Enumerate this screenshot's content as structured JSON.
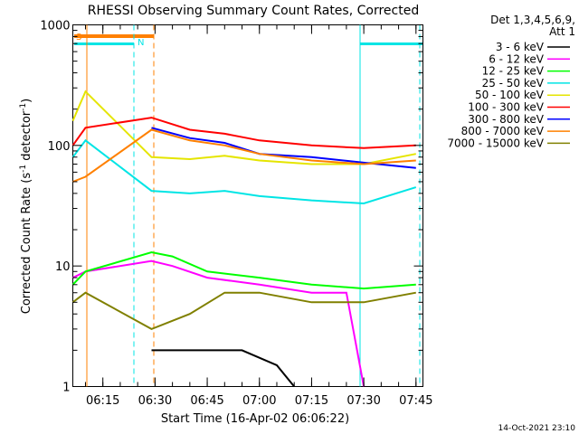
{
  "chart_data": {
    "type": "line",
    "title": "RHESSI Observing Summary Count Rates, Corrected",
    "xlabel": "Start Time (16-Apr-02 06:06:22)",
    "ylabel": "Corrected Count Rate (s",
    "ylabel_sup1": "-1",
    "ylabel_mid": " detector",
    "ylabel_sup2": "-1",
    "ylabel_end": ")",
    "y_scale": "log",
    "xlim": [
      "06:06:22",
      "07:47:00"
    ],
    "ylim": [
      1,
      1000
    ],
    "x_ticks": [
      "06:15",
      "06:30",
      "06:45",
      "07:00",
      "07:15",
      "07:30",
      "07:45"
    ],
    "y_ticks": [
      "1",
      "10",
      "100",
      "1000"
    ],
    "legend_placement": "right",
    "legend_header": [
      "Det 1,3,4,5,6,9,",
      "Att 1"
    ],
    "timestamp": "14-Oct-2021 23:10",
    "flags": [
      {
        "label": "S",
        "color": "#ff8000"
      },
      {
        "label": "N",
        "color": "#00e5e5"
      }
    ],
    "series": [
      {
        "name": "3 - 6 keV",
        "color": "#000000",
        "x": [
          "06:29",
          "06:35",
          "06:45",
          "06:55",
          "07:05",
          "07:10"
        ],
        "y": [
          2,
          2,
          2,
          2,
          1.5,
          1
        ]
      },
      {
        "name": "6 - 12 keV",
        "color": "#ff00ff",
        "x": [
          "06:06:22",
          "06:10",
          "06:29",
          "06:35",
          "06:45",
          "07:00",
          "07:15",
          "07:25",
          "07:30"
        ],
        "y": [
          8,
          9,
          11,
          10,
          8,
          7,
          6,
          6,
          1
        ]
      },
      {
        "name": "12 - 25 keV",
        "color": "#00ff00",
        "x": [
          "06:06:22",
          "06:10",
          "06:29",
          "06:35",
          "06:45",
          "07:00",
          "07:15",
          "07:30",
          "07:45"
        ],
        "y": [
          7,
          9,
          13,
          12,
          9,
          8,
          7,
          6.5,
          7
        ]
      },
      {
        "name": "25 - 50 keV",
        "color": "#00e5e5",
        "x": [
          "06:06:22",
          "06:10",
          "06:29",
          "06:40",
          "06:50",
          "07:00",
          "07:15",
          "07:30",
          "07:45"
        ],
        "y": [
          80,
          110,
          42,
          40,
          42,
          38,
          35,
          33,
          45
        ]
      },
      {
        "name": "50 - 100 keV",
        "color": "#e5e500",
        "x": [
          "06:06:22",
          "06:10",
          "06:29",
          "06:40",
          "06:50",
          "07:00",
          "07:15",
          "07:30",
          "07:45"
        ],
        "y": [
          160,
          280,
          80,
          77,
          82,
          75,
          70,
          70,
          85
        ]
      },
      {
        "name": "100 - 300 keV",
        "color": "#ff0000",
        "x": [
          "06:06:22",
          "06:10",
          "06:29",
          "06:40",
          "06:50",
          "07:00",
          "07:15",
          "07:30",
          "07:45"
        ],
        "y": [
          100,
          140,
          170,
          135,
          125,
          110,
          100,
          95,
          100
        ]
      },
      {
        "name": "300 - 800 keV",
        "color": "#0000ff",
        "x": [
          "06:29",
          "06:40",
          "06:50",
          "07:00",
          "07:15",
          "07:30",
          "07:45"
        ],
        "y": [
          140,
          115,
          105,
          85,
          80,
          72,
          65
        ]
      },
      {
        "name": "800 - 7000 keV",
        "color": "#ff8000",
        "x": [
          "06:06:22",
          "06:10",
          "06:29",
          "06:40",
          "06:50",
          "07:00",
          "07:15",
          "07:30",
          "07:45"
        ],
        "y": [
          50,
          55,
          135,
          110,
          100,
          85,
          75,
          70,
          75
        ]
      },
      {
        "name": "7000 - 15000 keV",
        "color": "#808000",
        "x": [
          "06:06:22",
          "06:10",
          "06:29",
          "06:40",
          "06:50",
          "07:00",
          "07:15",
          "07:30",
          "07:45"
        ],
        "y": [
          5,
          6,
          3,
          4,
          6,
          6,
          5,
          5,
          6
        ]
      }
    ]
  }
}
